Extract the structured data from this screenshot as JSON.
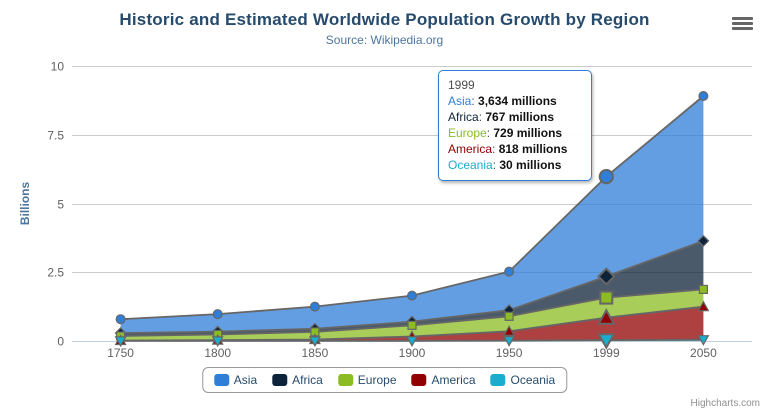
{
  "header": {
    "title": "Historic and Estimated Worldwide Population Growth by Region",
    "subtitle": "Source: Wikipedia.org"
  },
  "chart_data": {
    "type": "area",
    "stacking": "normal",
    "title": "Historic and Estimated Worldwide Population Growth by Region",
    "subtitle": "Source: Wikipedia.org",
    "categories": [
      "1750",
      "1800",
      "1850",
      "1900",
      "1950",
      "1999",
      "2050"
    ],
    "unit": "millions",
    "series": [
      {
        "name": "Asia",
        "color": "#2f7ed8",
        "marker": "circle",
        "values": [
          502,
          635,
          809,
          947,
          1402,
          3634,
          5268
        ]
      },
      {
        "name": "Africa",
        "color": "#0d233a",
        "marker": "diamond",
        "values": [
          106,
          107,
          111,
          133,
          221,
          767,
          1766
        ]
      },
      {
        "name": "Europe",
        "color": "#8bbc21",
        "marker": "square",
        "values": [
          163,
          203,
          276,
          408,
          547,
          729,
          628
        ]
      },
      {
        "name": "America",
        "color": "#910000",
        "marker": "triangle",
        "values": [
          18,
          31,
          54,
          156,
          339,
          818,
          1201
        ]
      },
      {
        "name": "Oceania",
        "color": "#1aadce",
        "marker": "triangle-down",
        "values": [
          2,
          2,
          2,
          6,
          13,
          30,
          46
        ]
      }
    ],
    "yaxis": {
      "title": "Billions",
      "tick_labels": [
        "0",
        "2.5",
        "5",
        "7.5",
        "10"
      ],
      "tick_values_millions": [
        0,
        2500,
        5000,
        7500,
        10000
      ],
      "max_millions": 10000
    },
    "grid": true,
    "line_color": "#666666",
    "fill_opacity": 0.75,
    "grid_color": "#cccccc",
    "axis_line_color": "#c0d0e0",
    "label_color": "#606060",
    "axis_title_color": "#4d759e",
    "legend_position": "bottom"
  },
  "tooltip": {
    "header": "1999",
    "category_index": 5,
    "rows": [
      {
        "name": "Asia",
        "value": "3,634 millions"
      },
      {
        "name": "Africa",
        "value": "767 millions"
      },
      {
        "name": "Europe",
        "value": "729 millions"
      },
      {
        "name": "America",
        "value": "818 millions"
      },
      {
        "name": "Oceania",
        "value": "30 millions"
      }
    ]
  },
  "credits": {
    "label": "Highcharts.com"
  }
}
